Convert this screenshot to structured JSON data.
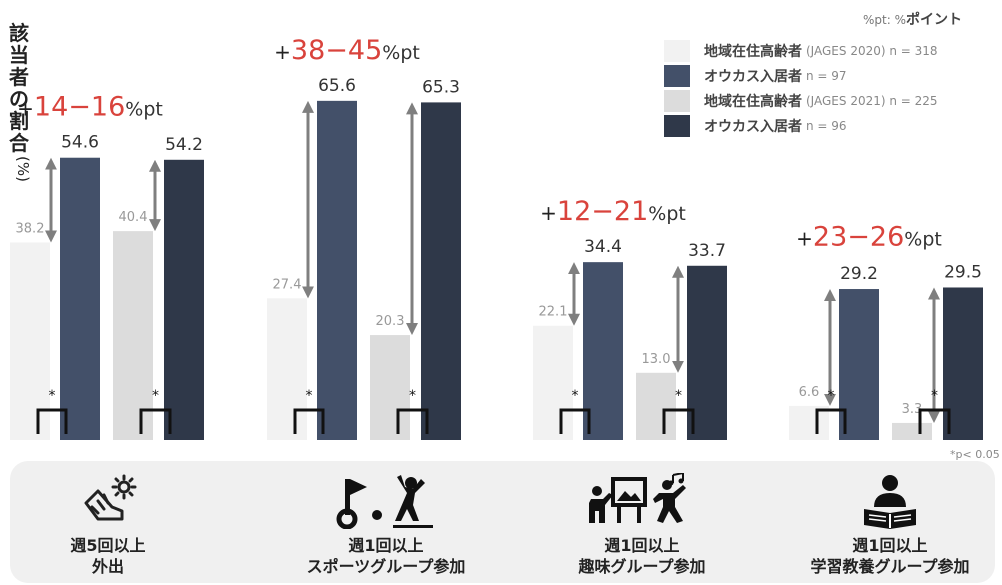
{
  "note": {
    "prefix": "%pt: %",
    "bold": "ポイント"
  },
  "y_axis": {
    "label": "該当者の割合",
    "unit": "(%)"
  },
  "significance_note": "*p< 0.05",
  "significance_mark": "*",
  "colors": {
    "community_2020": "#f2f2f2",
    "okas_2020": "#435069",
    "community_2021": "#dcdcdc",
    "okas_2021": "#2f3849",
    "diff_red": "#d9433c",
    "arrow": "#7f7f7f"
  },
  "chart_data": {
    "type": "bar",
    "title": "",
    "xlabel": "",
    "ylabel": "該当者の割合 (%)",
    "legend_position": "top-right",
    "series": [
      {
        "name": "地域在住高齢者",
        "detail": "(JAGES 2020) n = 318",
        "color_key": "community_2020",
        "values": [
          38.2,
          27.4,
          22.1,
          6.6
        ]
      },
      {
        "name": "オウカス入居者",
        "detail": "n = 97",
        "color_key": "okas_2020",
        "values": [
          54.6,
          65.6,
          34.4,
          29.2
        ]
      },
      {
        "name": "地域在住高齢者",
        "detail": "(JAGES 2021) n = 225",
        "color_key": "community_2021",
        "values": [
          40.4,
          20.3,
          13.0,
          3.3
        ]
      },
      {
        "name": "オウカス入居者",
        "detail": "n = 96",
        "color_key": "okas_2021",
        "values": [
          54.2,
          65.3,
          33.7,
          29.5
        ]
      }
    ],
    "groups": [
      {
        "diff": {
          "prefix": "+",
          "range": "14−16",
          "unit": "%pt"
        }
      },
      {
        "diff": {
          "prefix": "+",
          "range": "38−45",
          "unit": "%pt"
        }
      },
      {
        "diff": {
          "prefix": "+",
          "range": "12−21",
          "unit": "%pt"
        }
      },
      {
        "diff": {
          "prefix": "+",
          "range": "23−26",
          "unit": "%pt"
        }
      }
    ]
  },
  "categories": [
    {
      "icon": "shoe-sun-icon",
      "line1": "週5回以上",
      "line2": "外出"
    },
    {
      "icon": "golf-sports-icon",
      "line1": "週1回以上",
      "line2": "スポーツグループ参加"
    },
    {
      "icon": "hobby-group-icon",
      "line1": "週1回以上",
      "line2": "趣味グループ参加"
    },
    {
      "icon": "study-book-icon",
      "line1": "週1回以上",
      "line2": "学習教養グループ参加"
    }
  ]
}
